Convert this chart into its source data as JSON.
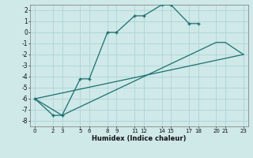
{
  "xlabel": "Humidex (Indice chaleur)",
  "bg_color": "#cfe8e8",
  "grid_color": "#aed4d4",
  "line_color": "#1a7070",
  "line1_x": [
    0,
    2,
    3,
    5,
    6,
    8,
    9,
    11,
    12,
    14,
    15,
    17,
    18
  ],
  "line1_y": [
    -6.0,
    -7.5,
    -7.5,
    -4.2,
    -4.2,
    0.0,
    0.0,
    1.5,
    1.5,
    2.5,
    2.5,
    0.8,
    0.8
  ],
  "line2_x": [
    0,
    23
  ],
  "line2_y": [
    -6.0,
    -2.0
  ],
  "line3_x": [
    0,
    3,
    20,
    21,
    23
  ],
  "line3_y": [
    -6.0,
    -7.5,
    -0.9,
    -0.9,
    -2.0
  ],
  "xlim": [
    -0.5,
    23.5
  ],
  "ylim": [
    -8.5,
    2.5
  ],
  "xticks": [
    0,
    2,
    3,
    5,
    6,
    8,
    9,
    11,
    12,
    14,
    15,
    17,
    18,
    20,
    21,
    23
  ],
  "yticks": [
    -8,
    -7,
    -6,
    -5,
    -4,
    -3,
    -2,
    -1,
    0,
    1,
    2
  ]
}
